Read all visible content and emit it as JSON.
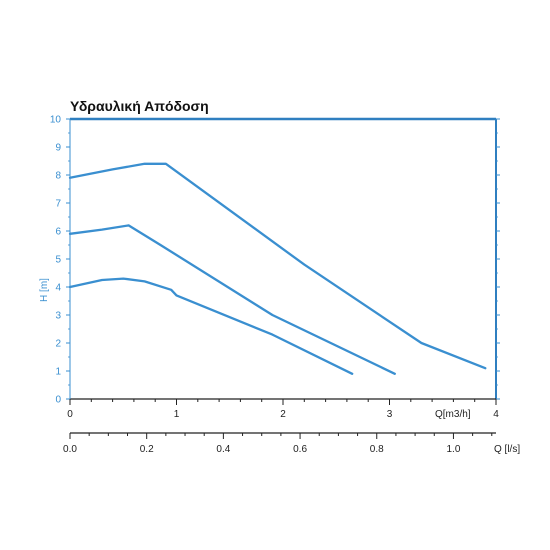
{
  "chart_data": {
    "type": "line",
    "title": "Υδραυλική Απόδοση",
    "ylabel": "H [m]",
    "xlabel": "Q[m3/h]",
    "x2label": "Q [l/s]",
    "xlim": [
      0,
      4
    ],
    "ylim": [
      0,
      10
    ],
    "x2lim": [
      0,
      1.111
    ],
    "y_ticks": [
      "0",
      "1",
      "2",
      "3",
      "4",
      "5",
      "6",
      "7",
      "8",
      "9",
      "10"
    ],
    "x_ticks": [
      "0",
      "1",
      "2",
      "3",
      "4"
    ],
    "x2_ticks": [
      "0.0",
      "0.2",
      "0.4",
      "0.6",
      "0.8",
      "1.0"
    ],
    "grid": false,
    "series": [
      {
        "x": [
          0,
          0.4,
          0.7,
          0.9,
          2.2,
          3.3,
          3.9
        ],
        "y": [
          7.9,
          8.2,
          8.4,
          8.4,
          4.8,
          2.0,
          1.1
        ]
      },
      {
        "x": [
          0,
          0.3,
          0.55,
          0.85,
          1.9,
          3.05
        ],
        "y": [
          5.9,
          6.05,
          6.2,
          5.5,
          3.0,
          0.9
        ]
      },
      {
        "x": [
          0,
          0.3,
          0.5,
          0.7,
          0.95,
          1.0,
          1.9,
          2.65
        ],
        "y": [
          4.0,
          4.25,
          4.3,
          4.2,
          3.9,
          3.7,
          2.3,
          0.9
        ]
      }
    ],
    "colors": {
      "line": "#3a8fd0",
      "axis": "#3a8fd0",
      "frame": "#2f7fc0",
      "text": "#222222"
    }
  }
}
